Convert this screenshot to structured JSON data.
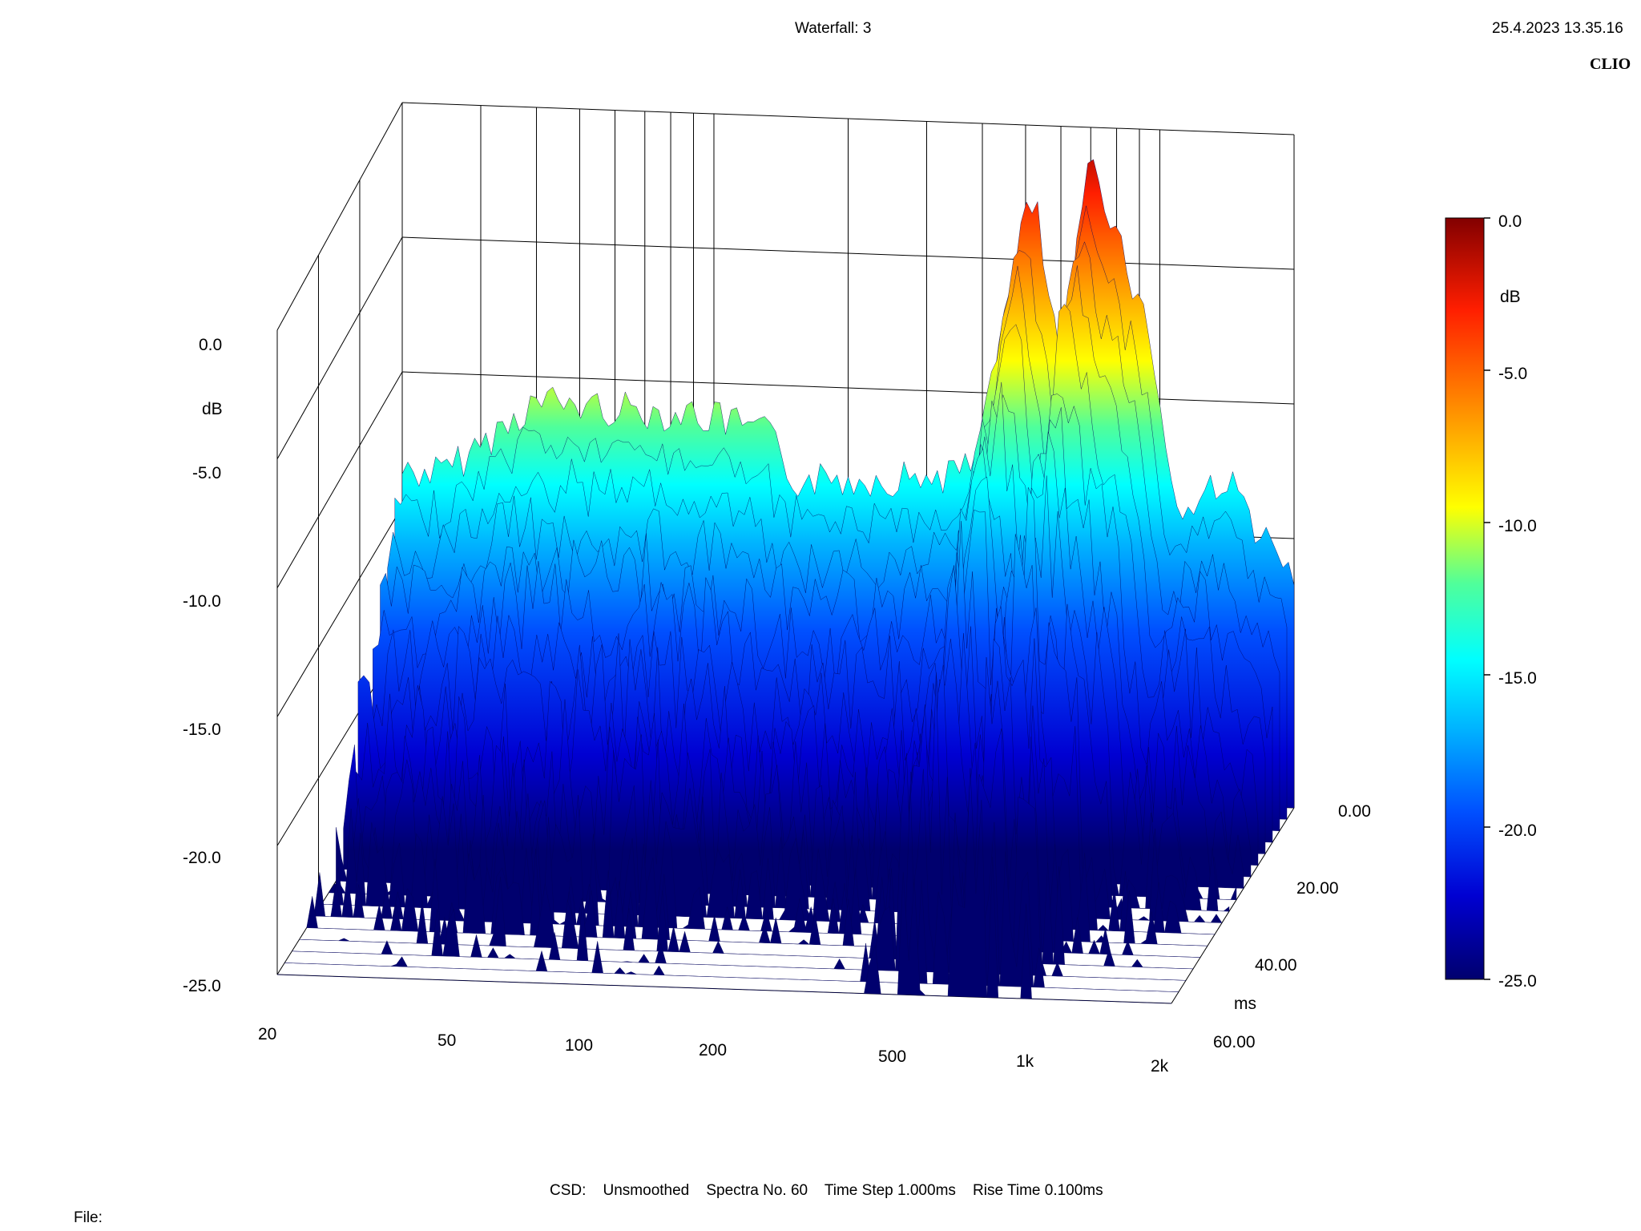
{
  "header": {
    "title": "Waterfall: 3",
    "timestamp": "25.4.2023 13.35.16",
    "brand": "CLIO"
  },
  "footer": {
    "settings": "CSD:    Unsmoothed    Spectra No. 60    Time Step 1.000ms    Rise Time 0.100ms",
    "file_label": "File:"
  },
  "colors": {
    "scale": [
      "#00006e",
      "#0000d2",
      "#0050ff",
      "#00b4ff",
      "#00ffff",
      "#50ff9a",
      "#ffff00",
      "#ff9600",
      "#ff1e00",
      "#820000"
    ],
    "grid": "#000000"
  },
  "chart_data": {
    "type": "waterfall",
    "z_axis": {
      "label": "dB",
      "range": [
        -25,
        0
      ],
      "ticks": [
        "0.0",
        "-5.0",
        "-10.0",
        "-15.0",
        "-20.0",
        "-25.0"
      ]
    },
    "x_axis": {
      "scale": "log",
      "range": [
        20,
        2000
      ],
      "ticks": [
        "20",
        "50",
        "100",
        "200",
        "500",
        "1k",
        "2k"
      ]
    },
    "time_axis": {
      "label": "ms",
      "range": [
        0,
        60
      ],
      "ticks": [
        "0.00",
        "20.00",
        "40.00",
        "60.00"
      ]
    },
    "colorbar": {
      "label": "dB",
      "ticks": [
        "0.0",
        "-5.0",
        "-10.0",
        "-15.0",
        "-20.0",
        "-25.0"
      ]
    },
    "series": [
      {
        "values_at": [
          {
            "x": 25,
            "y": -13.0
          },
          {
            "x": 40,
            "y": -10.2
          },
          {
            "x": 60,
            "y": -10.4
          },
          {
            "x": 90,
            "y": -10.5
          },
          {
            "x": 120,
            "y": -10.9
          },
          {
            "x": 135,
            "y": -11.3
          },
          {
            "x": 150,
            "y": -12.8
          },
          {
            "x": 200,
            "y": -12.7
          },
          {
            "x": 300,
            "y": -12.5
          },
          {
            "x": 380,
            "y": -12.2
          },
          {
            "x": 420,
            "y": -8.8
          },
          {
            "x": 450,
            "y": -6.5
          },
          {
            "x": 500,
            "y": -2.5
          },
          {
            "x": 530,
            "y": -2.6
          },
          {
            "x": 600,
            "y": -8.5
          },
          {
            "x": 700,
            "y": -0.2
          },
          {
            "x": 850,
            "y": -4.5
          },
          {
            "x": 950,
            "y": -7.0
          },
          {
            "x": 1100,
            "y": -13.8
          },
          {
            "x": 1400,
            "y": -12.0
          },
          {
            "x": 1800,
            "y": -15.0
          },
          {
            "x": 2000,
            "y": -15.8
          }
        ]
      }
    ]
  }
}
